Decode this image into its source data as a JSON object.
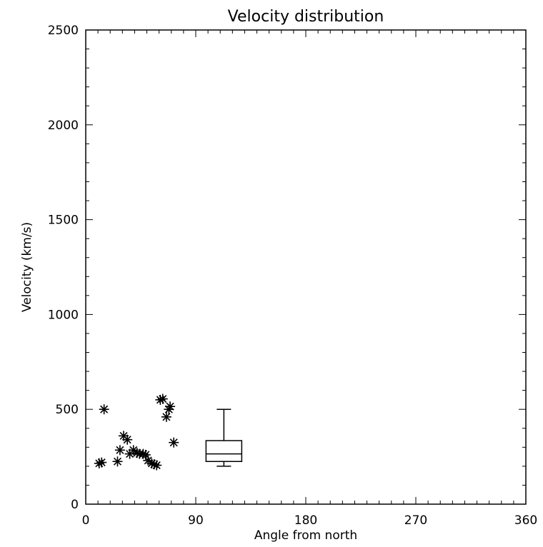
{
  "chart_data": {
    "type": "scatter",
    "title": "Velocity distribution",
    "xlabel": "Angle from north",
    "ylabel": "Velocity (km/s)",
    "xlim": [
      0,
      360
    ],
    "ylim": [
      0,
      2500
    ],
    "xticks": [
      0,
      90,
      180,
      270,
      360
    ],
    "yticks": [
      0,
      500,
      1000,
      1500,
      2000,
      2500
    ],
    "grid": false,
    "legend": "none",
    "series": [
      {
        "marker": "asterisk",
        "points": [
          {
            "x": 11,
            "y": 215
          },
          {
            "x": 13,
            "y": 220
          },
          {
            "x": 15,
            "y": 500
          },
          {
            "x": 26,
            "y": 225
          },
          {
            "x": 28,
            "y": 285
          },
          {
            "x": 31,
            "y": 360
          },
          {
            "x": 34,
            "y": 340
          },
          {
            "x": 36,
            "y": 265
          },
          {
            "x": 39,
            "y": 285
          },
          {
            "x": 42,
            "y": 270
          },
          {
            "x": 44,
            "y": 265
          },
          {
            "x": 47,
            "y": 265
          },
          {
            "x": 49,
            "y": 260
          },
          {
            "x": 51,
            "y": 230
          },
          {
            "x": 54,
            "y": 215
          },
          {
            "x": 56,
            "y": 210
          },
          {
            "x": 58,
            "y": 205
          },
          {
            "x": 61,
            "y": 550
          },
          {
            "x": 63,
            "y": 555
          },
          {
            "x": 66,
            "y": 460
          },
          {
            "x": 68,
            "y": 500
          },
          {
            "x": 69,
            "y": 515
          },
          {
            "x": 72,
            "y": 325
          }
        ]
      }
    ],
    "boxplot": {
      "x": 113,
      "min": 200,
      "q1": 225,
      "median": 265,
      "q3": 335,
      "max": 500
    }
  }
}
